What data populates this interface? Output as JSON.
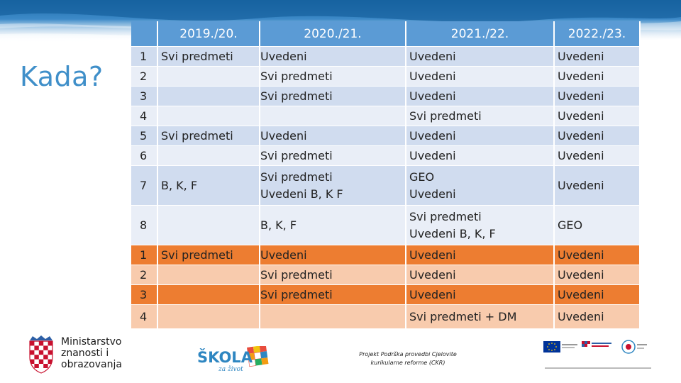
{
  "slide": {
    "title": "Kada?",
    "columns": [
      "",
      "2019./20.",
      "2020./21.",
      "2021./22.",
      "2022./23."
    ],
    "rows": [
      {
        "num": "1",
        "y2019": "Svi predmeti",
        "y2020": [
          "Uvedeni"
        ],
        "y2021": [
          "Uvedeni"
        ],
        "y2022": "Uvedeni",
        "style": "blue-a"
      },
      {
        "num": "2",
        "y2019": "",
        "y2020": [
          "Svi predmeti"
        ],
        "y2021": [
          "Uvedeni"
        ],
        "y2022": "Uvedeni",
        "style": "blue-b"
      },
      {
        "num": "3",
        "y2019": "",
        "y2020": [
          "Svi predmeti"
        ],
        "y2021": [
          "Uvedeni"
        ],
        "y2022": "Uvedeni",
        "style": "blue-a"
      },
      {
        "num": "4",
        "y2019": "",
        "y2020": [
          ""
        ],
        "y2021": [
          "Svi predmeti"
        ],
        "y2022": "Uvedeni",
        "style": "blue-b"
      },
      {
        "num": "5",
        "y2019": "Svi predmeti",
        "y2020": [
          "Uvedeni"
        ],
        "y2021": [
          "Uvedeni"
        ],
        "y2022": "Uvedeni",
        "style": "blue-a"
      },
      {
        "num": "6",
        "y2019": "",
        "y2020": [
          "Svi predmeti"
        ],
        "y2021": [
          "Uvedeni"
        ],
        "y2022": "Uvedeni",
        "style": "blue-b"
      },
      {
        "num": "7",
        "y2019": "B, K, F",
        "y2020": [
          "Svi predmeti",
          "Uvedeni B, K F"
        ],
        "y2021": [
          "GEO",
          "Uvedeni"
        ],
        "y2022": "Uvedeni",
        "style": "blue-a"
      },
      {
        "num": "8",
        "y2019": "",
        "y2020": [
          "B, K, F"
        ],
        "y2021": [
          "Svi predmeti",
          "Uvedeni B, K, F"
        ],
        "y2022": "GEO",
        "style": "blue-b"
      },
      {
        "num": "1",
        "y2019": "Svi predmeti",
        "y2020": [
          "Uvedeni"
        ],
        "y2021": [
          "Uvedeni"
        ],
        "y2022": "Uvedeni",
        "style": "org-a"
      },
      {
        "num": "2",
        "y2019": "",
        "y2020": [
          "Svi predmeti"
        ],
        "y2021": [
          "Uvedeni"
        ],
        "y2022": "Uvedeni",
        "style": "org-b"
      },
      {
        "num": "3",
        "y2019": "",
        "y2020": [
          "Svi predmeti"
        ],
        "y2021": [
          "Uvedeni"
        ],
        "y2022": "Uvedeni",
        "style": "org-a"
      },
      {
        "num": "4",
        "y2019": "",
        "y2020": [
          ""
        ],
        "y2021": [
          "Svi predmeti + DM"
        ],
        "y2022": "Uvedeni",
        "style": "org-b"
      }
    ]
  },
  "footer": {
    "ministry_lines": [
      "Ministarstvo",
      "znanosti i",
      "obrazovanja"
    ],
    "skola_logo_text": "ŠKOLA",
    "skola_tagline": "za život",
    "project_lines": [
      "Projekt Podrška provedbi Cjelovite",
      "kurikularne reforme (CKR)"
    ]
  },
  "colors": {
    "header_blue": "#5b9bd5",
    "row_blue_dark": "#d0dcef",
    "row_blue_light": "#e9eef7",
    "row_orange_dark": "#ed7d31",
    "row_orange_light": "#f8cbad",
    "title_blue": "#3f8fc9"
  }
}
